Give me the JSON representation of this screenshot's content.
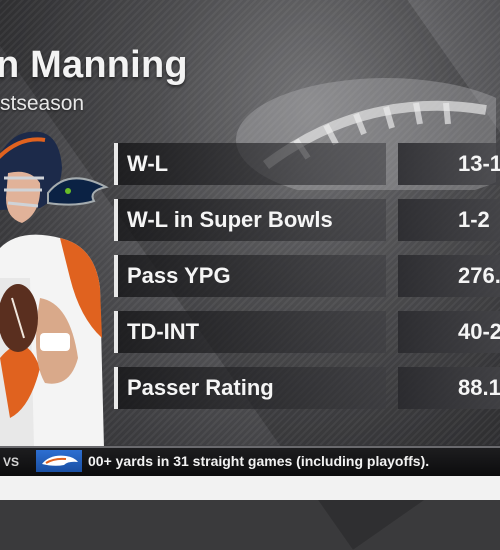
{
  "graphic": {
    "title": "n Manning",
    "subtitle": "stseason"
  },
  "stats": [
    {
      "label": "W-L",
      "value": "13-1"
    },
    {
      "label": "W-L in Super Bowls",
      "value": "1-2"
    },
    {
      "label": "Pass YPG",
      "value": "276."
    },
    {
      "label": "TD-INT",
      "value": "40-2"
    },
    {
      "label": "Passer Rating",
      "value": "88.1"
    }
  ],
  "ticker": {
    "vs": "VS",
    "logo": "broncos-logo",
    "text": "00+ yards in 31 straight games (including playoffs)."
  },
  "colors": {
    "broncos_navy": "#1c2a4a",
    "broncos_orange": "#e0621f",
    "ticker_blue": "#2d6fd1"
  }
}
